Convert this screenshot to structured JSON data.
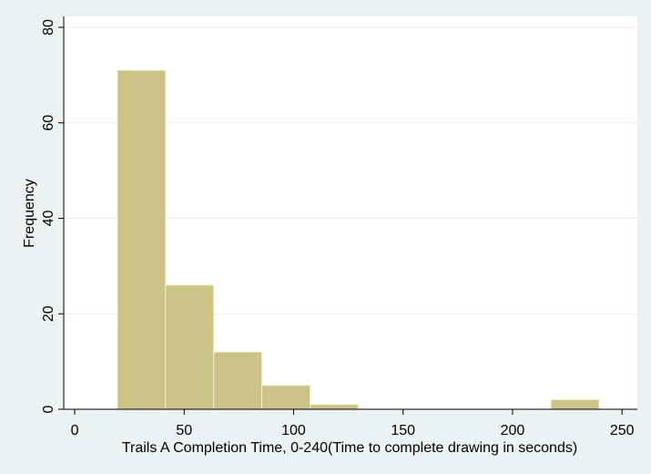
{
  "chart_data": {
    "type": "bar",
    "title": "",
    "xlabel": "Trails A Completion Time, 0-240(Time to complete drawing in seconds)",
    "ylabel": "Frequency",
    "xlim": [
      -5,
      257
    ],
    "ylim": [
      0,
      80
    ],
    "xticks": [
      0,
      50,
      100,
      150,
      200,
      250
    ],
    "yticks": [
      0,
      20,
      40,
      60,
      80
    ],
    "grid": true,
    "legend": "none",
    "bars": [
      {
        "x0": 19.5,
        "x1": 41.5,
        "value": 71
      },
      {
        "x0": 41.5,
        "x1": 63.5,
        "value": 26
      },
      {
        "x0": 63.5,
        "x1": 85.5,
        "value": 12
      },
      {
        "x0": 85.5,
        "x1": 107.5,
        "value": 5
      },
      {
        "x0": 107.5,
        "x1": 129.5,
        "value": 1
      },
      {
        "x0": 217.5,
        "x1": 239.5,
        "value": 2
      }
    ],
    "colors": {
      "bar_fill": "#cbc486",
      "bar_stroke": "#efefcd",
      "plot_bg": "#ffffff",
      "page_bg": "#eaf2f3",
      "grid": "#e8eeee",
      "axis": "#000000"
    }
  }
}
